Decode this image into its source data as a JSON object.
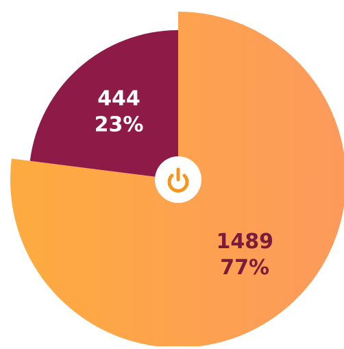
{
  "chart_data": {
    "type": "pie",
    "categories": [
      null,
      null
    ],
    "values": [
      1489,
      444
    ],
    "percentages": [
      77,
      23
    ],
    "percentage_labels": [
      "77%",
      "23%"
    ],
    "colors": [
      "#fda54a",
      "#8e1a47"
    ],
    "label_colors": [
      "#7a1c3a",
      "#ffffff"
    ]
  }
}
